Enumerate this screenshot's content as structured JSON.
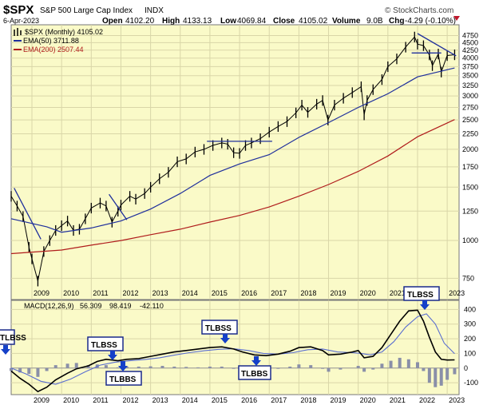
{
  "header": {
    "symbol": "$SPX",
    "name": "S&P 500 Large Cap Index",
    "exchange": "INDX",
    "brand": "© StockCharts.com",
    "date": "6-Apr-2023",
    "open_label": "Open",
    "open": "4102.20",
    "high_label": "High",
    "high": "4133.13",
    "low_label": "Low",
    "low": "4069.84",
    "close_label": "Close",
    "close": "4105.02",
    "volume_label": "Volume",
    "volume": "9.0B",
    "chg_label": "Chg",
    "chg": "-4.29 (-0.10%)"
  },
  "legend": {
    "price": "$SPX (Monthly) 4105.02",
    "ema50": "EMA(50) 3711.88",
    "ema200": "EMA(200) 2507.44"
  },
  "macd_label": {
    "name": "MACD(12,26,9)",
    "macd": "56.309",
    "signal": "98.419",
    "hist": "-42.110"
  },
  "colors": {
    "panel_bg": "#fafac8",
    "grid": "#d9d6a8",
    "price": "#000000",
    "ema50": "#1f2f9c",
    "ema200": "#b01c1c",
    "macd": "#000000",
    "signal": "#5a6ed0",
    "hist": "#8a8fa8",
    "callout_border": "#1a2a8a",
    "arrow": "#1540c8"
  },
  "chart_data": [
    {
      "type": "line",
      "title": "$SPX S&P 500 Large Cap Index INDX",
      "y_scale": "log",
      "ylim": [
        650,
        5000
      ],
      "xlim": [
        2008.3,
        2023.4
      ],
      "x_ticks": [
        "2009",
        "2010",
        "2011",
        "2012",
        "2013",
        "2014",
        "2015",
        "2016",
        "2017",
        "2018",
        "2019",
        "2020",
        "2021",
        "2022",
        "2023"
      ],
      "y_ticks": [
        750,
        1000,
        1250,
        1500,
        1750,
        2000,
        2250,
        2500,
        2750,
        3000,
        3250,
        3500,
        3750,
        4000,
        4250,
        4500,
        4750
      ],
      "grid": true,
      "legend_position": "top-left",
      "series": [
        {
          "name": "$SPX (Monthly)",
          "x": [
            2008.3,
            2008.5,
            2008.7,
            2008.9,
            2009.0,
            2009.2,
            2009.4,
            2009.6,
            2009.8,
            2010.0,
            2010.2,
            2010.4,
            2010.6,
            2010.8,
            2011.0,
            2011.3,
            2011.5,
            2011.7,
            2011.9,
            2012.0,
            2012.3,
            2012.5,
            2012.8,
            2013.0,
            2013.3,
            2013.6,
            2013.9,
            2014.2,
            2014.5,
            2014.8,
            2015.1,
            2015.4,
            2015.6,
            2015.8,
            2016.0,
            2016.2,
            2016.4,
            2016.7,
            2017.0,
            2017.3,
            2017.6,
            2017.9,
            2018.1,
            2018.3,
            2018.6,
            2018.8,
            2018.98,
            2019.2,
            2019.5,
            2019.8,
            2020.1,
            2020.2,
            2020.3,
            2020.5,
            2020.8,
            2021.0,
            2021.3,
            2021.6,
            2021.9,
            2022.0,
            2022.2,
            2022.4,
            2022.5,
            2022.7,
            2022.8,
            2023.0,
            2023.25
          ],
          "values": [
            1400,
            1300,
            1200,
            950,
            870,
            735,
            920,
            1000,
            1080,
            1120,
            1160,
            1080,
            1090,
            1180,
            1280,
            1330,
            1300,
            1150,
            1250,
            1310,
            1400,
            1370,
            1430,
            1500,
            1600,
            1680,
            1820,
            1860,
            1960,
            2000,
            2060,
            2100,
            2080,
            1950,
            1940,
            2060,
            2100,
            2170,
            2280,
            2380,
            2470,
            2640,
            2800,
            2650,
            2820,
            2900,
            2500,
            2800,
            2950,
            3080,
            3220,
            2600,
            2900,
            3150,
            3400,
            3750,
            3980,
            4350,
            4700,
            4450,
            4400,
            4100,
            3780,
            4130,
            3600,
            4080,
            4105
          ]
        },
        {
          "name": "EMA(50)",
          "x": [
            2008.3,
            2009.5,
            2010.0,
            2011.0,
            2012.0,
            2013.0,
            2014.0,
            2015.0,
            2016.0,
            2017.0,
            2018.0,
            2019.0,
            2020.0,
            2021.0,
            2022.0,
            2023.25
          ],
          "values": [
            1180,
            1110,
            1065,
            1100,
            1160,
            1270,
            1430,
            1640,
            1790,
            1920,
            2190,
            2450,
            2750,
            3050,
            3470,
            3712
          ]
        },
        {
          "name": "EMA(200)",
          "x": [
            2008.3,
            2010.0,
            2011.0,
            2012.0,
            2013.0,
            2014.0,
            2015.0,
            2016.0,
            2017.0,
            2018.0,
            2019.0,
            2020.0,
            2021.0,
            2022.0,
            2023.25
          ],
          "values": [
            905,
            930,
            965,
            1000,
            1045,
            1090,
            1150,
            1210,
            1290,
            1400,
            1530,
            1690,
            1900,
            2200,
            2507
          ]
        },
        {
          "name": "Trendline 1",
          "x": [
            2008.4,
            2009.3
          ],
          "values": [
            1490,
            1010
          ]
        },
        {
          "name": "Trendline 2",
          "x": [
            2011.6,
            2012.2
          ],
          "values": [
            1420,
            1170
          ]
        },
        {
          "name": "Trendline 3",
          "x": [
            2014.9,
            2017.1
          ],
          "values": [
            2125,
            2125
          ]
        },
        {
          "name": "Trendline 4",
          "x": [
            2021.8,
            2022.8
          ],
          "values": [
            4160,
            4160
          ]
        },
        {
          "name": "Trendline 5",
          "x": [
            2022.0,
            2023.3
          ],
          "values": [
            4820,
            4070
          ]
        }
      ]
    },
    {
      "type": "line",
      "title": "MACD(12,26,9)",
      "ylim": [
        -170,
        440
      ],
      "xlim": [
        2008.3,
        2023.4
      ],
      "y_ticks": [
        -100,
        0,
        100,
        200,
        300,
        400
      ],
      "grid": true,
      "series": [
        {
          "name": "MACD",
          "x": [
            2008.3,
            2008.6,
            2008.9,
            2009.2,
            2009.5,
            2009.8,
            2010.2,
            2010.5,
            2010.9,
            2011.2,
            2011.5,
            2011.9,
            2012.2,
            2012.6,
            2013.0,
            2013.4,
            2013.8,
            2014.2,
            2014.6,
            2015.0,
            2015.4,
            2015.8,
            2016.1,
            2016.5,
            2016.9,
            2017.3,
            2017.7,
            2018.0,
            2018.4,
            2018.8,
            2019.0,
            2019.4,
            2019.8,
            2020.0,
            2020.2,
            2020.5,
            2020.8,
            2021.1,
            2021.4,
            2021.7,
            2022.0,
            2022.2,
            2022.4,
            2022.6,
            2022.8,
            2023.0,
            2023.25
          ],
          "values": [
            -20,
            -70,
            -110,
            -160,
            -130,
            -80,
            -35,
            -5,
            15,
            45,
            60,
            50,
            60,
            65,
            80,
            95,
            110,
            120,
            130,
            140,
            145,
            130,
            110,
            90,
            85,
            95,
            115,
            140,
            145,
            120,
            90,
            95,
            110,
            120,
            70,
            80,
            140,
            230,
            320,
            390,
            395,
            320,
            210,
            110,
            60,
            55,
            56
          ]
        },
        {
          "name": "Signal",
          "x": [
            2008.3,
            2008.8,
            2009.3,
            2009.8,
            2010.3,
            2010.8,
            2011.3,
            2011.8,
            2012.3,
            2012.8,
            2013.3,
            2013.8,
            2014.3,
            2014.8,
            2015.3,
            2015.8,
            2016.3,
            2016.8,
            2017.3,
            2017.8,
            2018.3,
            2018.8,
            2019.3,
            2019.8,
            2020.1,
            2020.4,
            2020.8,
            2021.2,
            2021.6,
            2022.0,
            2022.3,
            2022.6,
            2022.9,
            2023.25
          ],
          "values": [
            0,
            -40,
            -90,
            -110,
            -75,
            -25,
            20,
            40,
            50,
            58,
            70,
            88,
            105,
            118,
            128,
            132,
            120,
            100,
            95,
            105,
            125,
            130,
            110,
            105,
            100,
            90,
            110,
            180,
            280,
            350,
            370,
            300,
            170,
            98
          ]
        },
        {
          "name": "Histogram",
          "x": [
            2008.3,
            2008.6,
            2008.9,
            2009.2,
            2009.5,
            2009.8,
            2010.2,
            2010.5,
            2010.9,
            2011.2,
            2011.5,
            2011.9,
            2012.2,
            2012.6,
            2013.0,
            2013.4,
            2013.8,
            2014.2,
            2014.6,
            2015.0,
            2015.4,
            2015.8,
            2016.1,
            2016.5,
            2016.9,
            2017.3,
            2017.7,
            2018.0,
            2018.4,
            2018.8,
            2019.0,
            2019.4,
            2019.8,
            2020.0,
            2020.2,
            2020.5,
            2020.8,
            2021.1,
            2021.4,
            2021.7,
            2022.0,
            2022.2,
            2022.4,
            2022.6,
            2022.8,
            2023.0,
            2023.25
          ],
          "values": [
            -20,
            -30,
            -40,
            -60,
            -20,
            20,
            30,
            35,
            20,
            25,
            20,
            5,
            10,
            10,
            12,
            15,
            10,
            8,
            5,
            10,
            10,
            -5,
            -15,
            -15,
            -15,
            -5,
            10,
            25,
            20,
            -5,
            -25,
            -10,
            0,
            15,
            -25,
            -10,
            30,
            50,
            70,
            60,
            40,
            -20,
            -100,
            -130,
            -120,
            -80,
            -42
          ]
        }
      ],
      "annotations": [
        "TLBSS",
        "TLBSS",
        "TLBBS",
        "TLBSS",
        "TLBBS",
        "TLBSS"
      ]
    }
  ]
}
